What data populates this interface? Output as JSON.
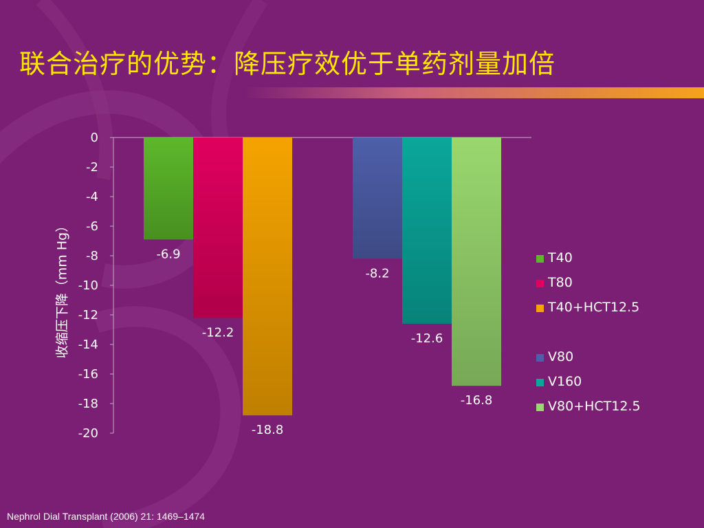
{
  "slide": {
    "title": "联合治疗的优势：降压疗效优于单药剂量加倍",
    "source": "Nephrol Dial Transplant (2006) 21: 1469–1474"
  },
  "colors": {
    "background": "#7b1f74",
    "title": "#ffe600",
    "accent_bar": "#f5a31a"
  },
  "chart_data": {
    "type": "bar",
    "ylabel": "收缩压下降（mm Hg）",
    "ylim": [
      -20,
      0
    ],
    "yticks": [
      0,
      -2,
      -4,
      -6,
      -8,
      -10,
      -12,
      -14,
      -16,
      -18,
      -20
    ],
    "grid": false,
    "legend_position": "right",
    "groups": [
      {
        "series": [
          {
            "name": "T40",
            "value": -6.9,
            "label": "-6.9",
            "color": "#5cb82a"
          },
          {
            "name": "T80",
            "value": -12.2,
            "label": "-12.2",
            "color": "#e0005e"
          },
          {
            "name": "T40+HCT12.5",
            "value": -18.8,
            "label": "-18.8",
            "color": "#f5a300"
          }
        ]
      },
      {
        "series": [
          {
            "name": "V80",
            "value": -8.2,
            "label": "-8.2",
            "color": "#4e5faa"
          },
          {
            "name": "V160",
            "value": -12.6,
            "label": "-12.6",
            "color": "#0aa79b"
          },
          {
            "name": "V80+HCT12.5",
            "value": -16.8,
            "label": "-16.8",
            "color": "#99d86e"
          }
        ]
      }
    ]
  }
}
